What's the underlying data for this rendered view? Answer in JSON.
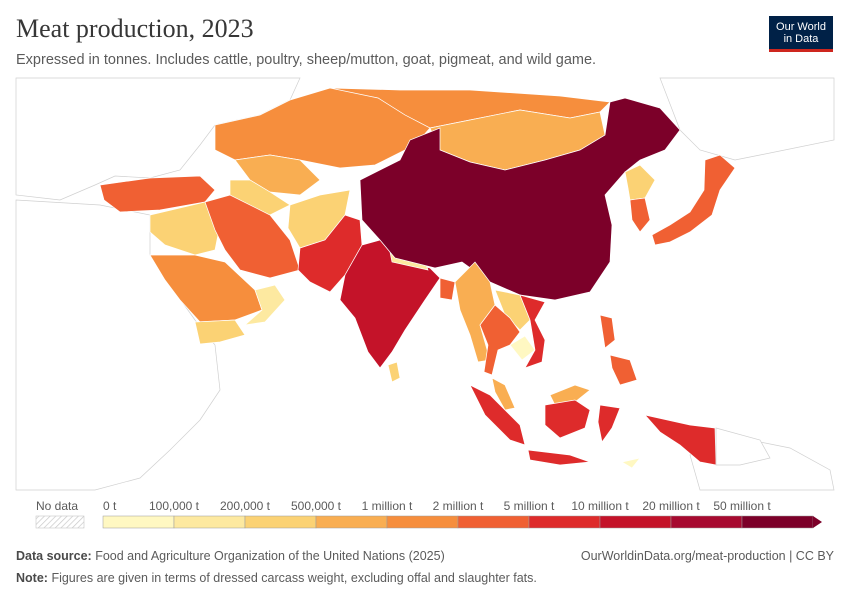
{
  "header": {
    "title": "Meat production, 2023",
    "subtitle": "Expressed in tonnes. Includes cattle, poultry, sheep/mutton, goat, pigmeat, and wild game."
  },
  "logo": {
    "line1": "Our World",
    "line2": "in Data"
  },
  "legend": {
    "no_data_label": "No data",
    "bins": [
      {
        "label": "0 t",
        "color": "#fff8c2"
      },
      {
        "label": "100,000 t",
        "color": "#fde9a0"
      },
      {
        "label": "200,000 t",
        "color": "#fbd274"
      },
      {
        "label": "500,000 t",
        "color": "#f9ae52"
      },
      {
        "label": "1 million t",
        "color": "#f68e3d"
      },
      {
        "label": "2 million t",
        "color": "#f06033"
      },
      {
        "label": "5 million t",
        "color": "#de2b2b"
      },
      {
        "label": "10 million t",
        "color": "#c41329"
      },
      {
        "label": "20 million t",
        "color": "#a70a30"
      },
      {
        "label": "50 million t",
        "color": "#7c0029"
      }
    ]
  },
  "footer": {
    "source_label": "Data source:",
    "source_text": "Food and Agriculture Organization of the United Nations (2025)",
    "note_label": "Note:",
    "note_text": "Figures are given in terms of dressed carcass weight, excluding offal and slaughter fats.",
    "url": "OurWorldinData.org/meat-production | CC BY"
  },
  "map_data": {
    "regions": [
      {
        "name": "China",
        "bin": 9
      },
      {
        "name": "India",
        "bin": 7
      },
      {
        "name": "Pakistan",
        "bin": 6
      },
      {
        "name": "Russia",
        "bin": 4
      },
      {
        "name": "Kazakhstan",
        "bin": 4
      },
      {
        "name": "Mongolia",
        "bin": 3
      },
      {
        "name": "Iran",
        "bin": 5
      },
      {
        "name": "Turkey",
        "bin": 5
      },
      {
        "name": "Saudi Arabia",
        "bin": 4
      },
      {
        "name": "Japan",
        "bin": 5
      },
      {
        "name": "South Korea",
        "bin": 5
      },
      {
        "name": "North Korea",
        "bin": 2
      },
      {
        "name": "Myanmar",
        "bin": 4
      },
      {
        "name": "Thailand",
        "bin": 5
      },
      {
        "name": "Vietnam",
        "bin": 6
      },
      {
        "name": "Laos",
        "bin": 2
      },
      {
        "name": "Cambodia",
        "bin": 1
      },
      {
        "name": "Malaysia",
        "bin": 3
      },
      {
        "name": "Philippines",
        "bin": 5
      },
      {
        "name": "Indonesia",
        "bin": 6
      },
      {
        "name": "Bangladesh",
        "bin": 6
      },
      {
        "name": "Nepal",
        "bin": 1
      },
      {
        "name": "Sri Lanka",
        "bin": 2
      },
      {
        "name": "Afghanistan",
        "bin": 2
      },
      {
        "name": "Uzbekistan",
        "bin": 3
      },
      {
        "name": "Turkmenistan",
        "bin": 2
      },
      {
        "name": "Yemen",
        "bin": 2
      },
      {
        "name": "Oman",
        "bin": 1
      },
      {
        "name": "Iraq",
        "bin": 3
      },
      {
        "name": "Syria",
        "bin": 2
      },
      {
        "name": "Papua New Guinea",
        "bin": 1
      }
    ]
  }
}
